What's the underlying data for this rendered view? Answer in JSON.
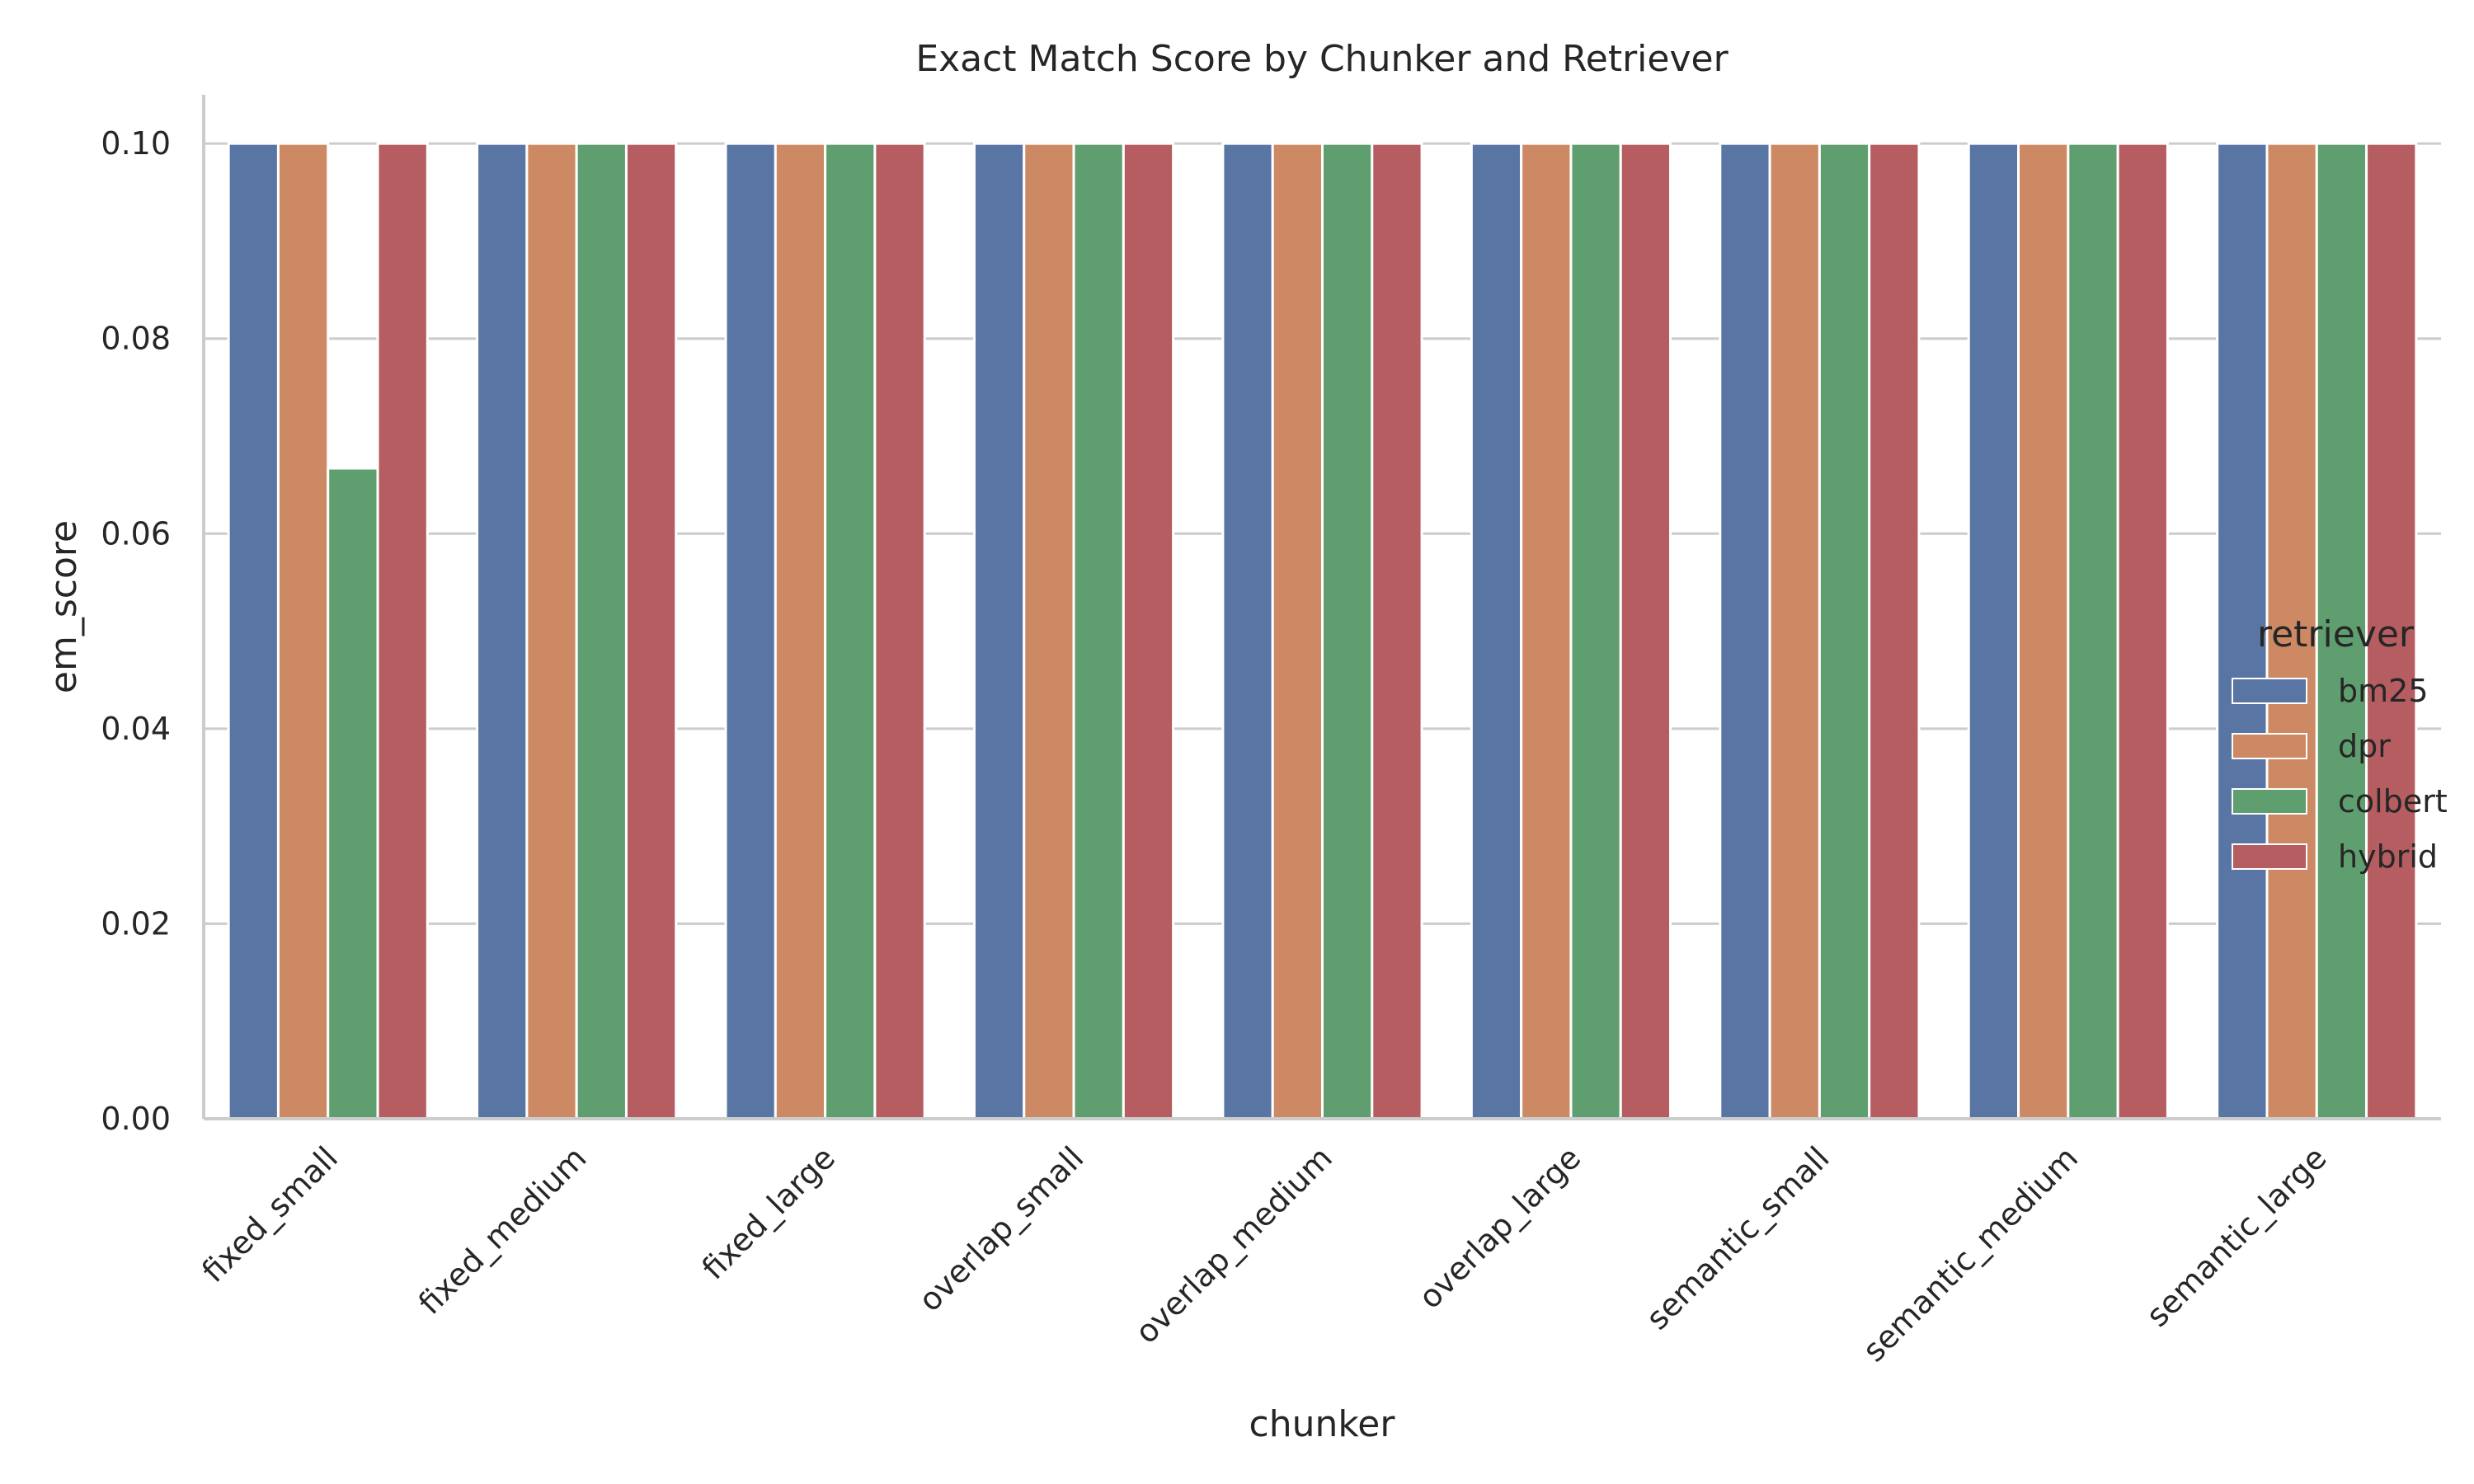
{
  "chart_data": {
    "type": "bar",
    "title": "Exact Match Score by Chunker and Retriever",
    "xlabel": "chunker",
    "ylabel": "em_score",
    "ylim": [
      0,
      0.105
    ],
    "yticks": [
      "0.00",
      "0.02",
      "0.04",
      "0.06",
      "0.08",
      "0.10"
    ],
    "grid": true,
    "legend": {
      "title": "retriever",
      "placement": "right"
    },
    "categories": [
      "fixed_small",
      "fixed_medium",
      "fixed_large",
      "overlap_small",
      "overlap_medium",
      "overlap_large",
      "semantic_small",
      "semantic_medium",
      "semantic_large"
    ],
    "series": [
      {
        "name": "bm25",
        "color": "#5975a4",
        "values": [
          0.1,
          0.1,
          0.1,
          0.1,
          0.1,
          0.1,
          0.1,
          0.1,
          0.1
        ]
      },
      {
        "name": "dpr",
        "color": "#cc8963",
        "values": [
          0.1,
          0.1,
          0.1,
          0.1,
          0.1,
          0.1,
          0.1,
          0.1,
          0.1
        ]
      },
      {
        "name": "colbert",
        "color": "#5f9e6e",
        "values": [
          0.0667,
          0.1,
          0.1,
          0.1,
          0.1,
          0.1,
          0.1,
          0.1,
          0.1
        ]
      },
      {
        "name": "hybrid",
        "color": "#b55d60",
        "values": [
          0.1,
          0.1,
          0.1,
          0.1,
          0.1,
          0.1,
          0.1,
          0.1,
          0.1
        ]
      }
    ]
  }
}
